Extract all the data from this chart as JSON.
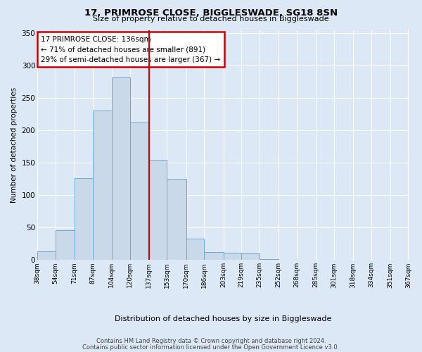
{
  "title": "17, PRIMROSE CLOSE, BIGGLESWADE, SG18 8SN",
  "subtitle": "Size of property relative to detached houses in Biggleswade",
  "xlabel": "Distribution of detached houses by size in Biggleswade",
  "ylabel": "Number of detached properties",
  "bin_labels": [
    "38sqm",
    "54sqm",
    "71sqm",
    "87sqm",
    "104sqm",
    "120sqm",
    "137sqm",
    "153sqm",
    "170sqm",
    "186sqm",
    "203sqm",
    "219sqm",
    "235sqm",
    "252sqm",
    "268sqm",
    "285sqm",
    "301sqm",
    "318sqm",
    "334sqm",
    "351sqm",
    "367sqm"
  ],
  "bar_values": [
    13,
    46,
    126,
    231,
    282,
    212,
    155,
    125,
    33,
    12,
    11,
    10,
    2,
    1,
    1,
    1,
    1,
    1,
    1,
    1
  ],
  "bar_color": "#cad9ea",
  "bar_edge_color": "#6aaad4",
  "annotation_title": "17 PRIMROSE CLOSE: 136sqm",
  "annotation_line1": "← 71% of detached houses are smaller (891)",
  "annotation_line2": "29% of semi-detached houses are larger (367) →",
  "annotation_box_color": "#ffffff",
  "annotation_border_color": "#cc0000",
  "vline_x": 137,
  "vline_color": "#cc0000",
  "ylim": [
    0,
    355
  ],
  "yticks": [
    0,
    50,
    100,
    150,
    200,
    250,
    300,
    350
  ],
  "footer1": "Contains HM Land Registry data © Crown copyright and database right 2024.",
  "footer2": "Contains public sector information licensed under the Open Government Licence v3.0.",
  "bin_edges": [
    38,
    54,
    71,
    87,
    104,
    120,
    137,
    153,
    170,
    186,
    203,
    219,
    235,
    252,
    268,
    285,
    301,
    318,
    334,
    351,
    367
  ],
  "background_color": "#dce8f5",
  "plot_bg_color": "#dce8f5",
  "grid_color": "#ffffff"
}
